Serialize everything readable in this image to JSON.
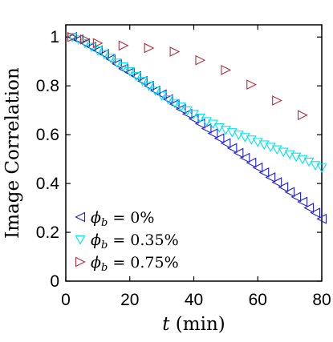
{
  "chart_data": {
    "type": "scatter",
    "xlabel": "t (min)",
    "xlabel_var": "t",
    "xlabel_unit": " (min)",
    "ylabel": "Image Correlation",
    "xlim": [
      0,
      80
    ],
    "ylim": [
      0,
      1.05
    ],
    "xticks": [
      0,
      20,
      40,
      60,
      80
    ],
    "yticks": [
      0,
      0.2,
      0.4,
      0.6,
      0.8,
      1
    ],
    "xtick_labels": [
      "0",
      "20",
      "40",
      "60",
      "80"
    ],
    "ytick_labels": [
      "0",
      "0.2",
      "0.4",
      "0.6",
      "0.8",
      "1"
    ],
    "grid": false,
    "legend_position": "bottom-left",
    "series": [
      {
        "name": "ϕb = 0%",
        "legend_var": "ϕ",
        "legend_sub": "b",
        "legend_rest": " = 0%",
        "color": "#1f1fd0",
        "marker": "triangle-left",
        "x": [
          2,
          4,
          6,
          8,
          10,
          12,
          14,
          16,
          18,
          20,
          22,
          24,
          26,
          28,
          30,
          32,
          34,
          36,
          38,
          40,
          42,
          44,
          46,
          48,
          50,
          52,
          54,
          56,
          58,
          60,
          62,
          64,
          66,
          68,
          70,
          72,
          74,
          76,
          78,
          80
        ],
        "y": [
          1.0,
          0.99,
          0.975,
          0.96,
          0.945,
          0.93,
          0.91,
          0.89,
          0.87,
          0.855,
          0.84,
          0.82,
          0.8,
          0.78,
          0.765,
          0.745,
          0.725,
          0.705,
          0.685,
          0.665,
          0.645,
          0.625,
          0.605,
          0.585,
          0.565,
          0.545,
          0.525,
          0.505,
          0.485,
          0.465,
          0.445,
          0.425,
          0.405,
          0.385,
          0.365,
          0.345,
          0.325,
          0.3,
          0.28,
          0.255
        ]
      },
      {
        "name": "ϕb = 0.35%",
        "legend_var": "ϕ",
        "legend_sub": "b",
        "legend_rest": " = 0.35%",
        "color": "#00e5f0",
        "marker": "triangle-down",
        "x": [
          2,
          4,
          6,
          8,
          10,
          12,
          14,
          16,
          18,
          20,
          22,
          24,
          26,
          28,
          30,
          32,
          34,
          36,
          38,
          40,
          42,
          44,
          46,
          48,
          50,
          52,
          54,
          56,
          58,
          60,
          62,
          64,
          66,
          68,
          70,
          72,
          74,
          76,
          78,
          80
        ],
        "y": [
          1.0,
          0.99,
          0.975,
          0.96,
          0.945,
          0.93,
          0.915,
          0.895,
          0.88,
          0.86,
          0.84,
          0.82,
          0.8,
          0.78,
          0.76,
          0.745,
          0.73,
          0.715,
          0.7,
          0.685,
          0.67,
          0.655,
          0.645,
          0.63,
          0.62,
          0.61,
          0.6,
          0.59,
          0.58,
          0.57,
          0.56,
          0.55,
          0.54,
          0.53,
          0.52,
          0.51,
          0.5,
          0.49,
          0.475,
          0.465
        ]
      },
      {
        "name": "ϕb = 0.75%",
        "legend_var": "ϕ",
        "legend_sub": "b",
        "legend_rest": " = 0.75%",
        "color": "#b0303c",
        "marker": "triangle-right",
        "x": [
          2,
          6,
          10,
          18,
          26,
          34,
          42,
          50,
          58,
          66,
          74
        ],
        "y": [
          1.0,
          0.99,
          0.975,
          0.965,
          0.955,
          0.94,
          0.905,
          0.865,
          0.805,
          0.74,
          0.68
        ]
      }
    ]
  }
}
